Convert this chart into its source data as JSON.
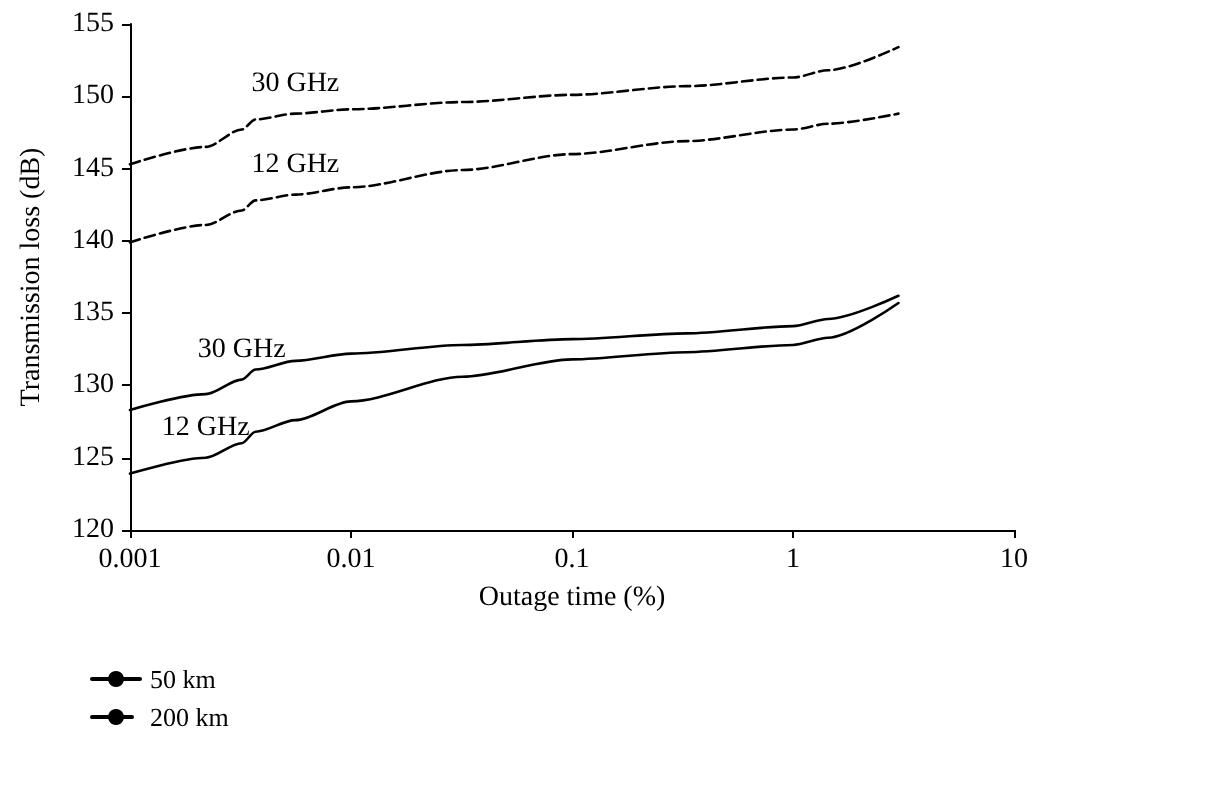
{
  "chart_data": {
    "type": "line",
    "xlabel": "Outage time (%)",
    "ylabel": "Transmission loss (dB)",
    "log": "x",
    "xlim": [
      0.001,
      10
    ],
    "xticks": [
      0.001,
      0.01,
      0.1,
      1,
      10
    ],
    "ylim": [
      120,
      155
    ],
    "yticks": [
      120,
      125,
      130,
      135,
      140,
      145,
      150,
      155
    ],
    "grid": false,
    "marker": "none",
    "legend": "bottom left",
    "series": [
      {
        "name": "50 km",
        "color": "#000000",
        "line_style": "solid",
        "x": [
          0.001,
          0.0022,
          0.0032,
          0.0037,
          0.0056,
          0.01,
          0.032,
          0.1,
          0.33,
          1,
          1.44,
          3
        ],
        "values": [
          128.3,
          129.4,
          130.4,
          131.1,
          131.7,
          132.2,
          132.8,
          133.2,
          133.6,
          134.1,
          134.6,
          136.2
        ]
      },
      {
        "color": "#000000",
        "line_style": "solid",
        "x": [
          0.001,
          0.0022,
          0.0032,
          0.0037,
          0.0056,
          0.01,
          0.032,
          0.1,
          0.33,
          1,
          1.44,
          3
        ],
        "values": [
          123.9,
          125.0,
          126.0,
          126.8,
          127.6,
          128.9,
          130.6,
          131.8,
          132.3,
          132.8,
          133.3,
          135.7
        ]
      },
      {
        "name": "200 km",
        "color": "#000000",
        "line_style": "dashed",
        "x": [
          0.001,
          0.0022,
          0.0032,
          0.0037,
          0.0056,
          0.01,
          0.032,
          0.1,
          0.33,
          1,
          1.44,
          3
        ],
        "values": [
          145.3,
          146.5,
          147.7,
          148.4,
          148.8,
          149.1,
          149.6,
          150.1,
          150.7,
          151.3,
          151.8,
          153.4
        ]
      },
      {
        "color": "#000000",
        "line_style": "dashed",
        "x": [
          0.001,
          0.0022,
          0.0032,
          0.0037,
          0.0056,
          0.01,
          0.032,
          0.1,
          0.33,
          1,
          1.44,
          3
        ],
        "values": [
          139.9,
          141.1,
          142.1,
          142.8,
          143.2,
          143.7,
          144.9,
          146.0,
          146.9,
          147.7,
          148.1,
          148.8
        ]
      }
    ],
    "annotations": [
      {
        "text": "30 GHz",
        "x": 0.0032,
        "y": 130.4
      },
      {
        "text": "12 GHz",
        "x": 0.0022,
        "y": 125.0
      },
      {
        "text": "30 GHz",
        "x": 0.0056,
        "y": 148.8
      },
      {
        "text": "12 GHz",
        "x": 0.0056,
        "y": 143.2
      }
    ]
  }
}
